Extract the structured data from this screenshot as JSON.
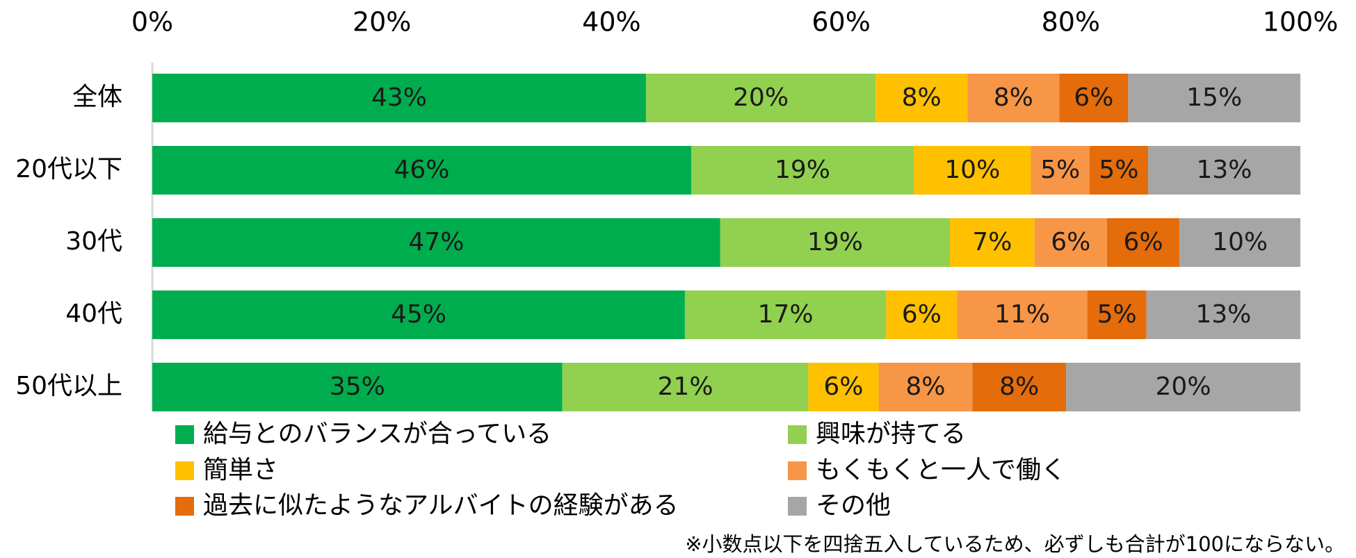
{
  "chart_data": {
    "type": "bar",
    "orientation": "horizontal",
    "stacked": true,
    "xlim": [
      0,
      100
    ],
    "x_ticks": [
      "0%",
      "20%",
      "40%",
      "60%",
      "80%",
      "100%"
    ],
    "categories": [
      "全体",
      "20代以下",
      "30代",
      "40代",
      "50代以上"
    ],
    "series": [
      {
        "name": "給与とのバランスが合っている",
        "color": "#00AD4E",
        "values": [
          43,
          46,
          47,
          45,
          35
        ],
        "labels": [
          "43%",
          "46%",
          "47%",
          "45%",
          "35%"
        ]
      },
      {
        "name": "興味が持てる",
        "color": "#92D050",
        "values": [
          20,
          19,
          19,
          17,
          21
        ],
        "labels": [
          "20%",
          "19%",
          "19%",
          "17%",
          "21%"
        ]
      },
      {
        "name": "簡単さ",
        "color": "#FFC000",
        "values": [
          8,
          10,
          7,
          6,
          6
        ],
        "labels": [
          "8%",
          "10%",
          "7%",
          "6%",
          "6%"
        ]
      },
      {
        "name": "もくもくと一人で働く",
        "color": "#F79646",
        "values": [
          8,
          5,
          6,
          11,
          8
        ],
        "labels": [
          "8%",
          "5%",
          "6%",
          "11%",
          "8%"
        ]
      },
      {
        "name": "過去に似たようなアルバイトの経験がある",
        "color": "#E46C0A",
        "values": [
          6,
          5,
          6,
          5,
          8
        ],
        "labels": [
          "6%",
          "5%",
          "6%",
          "5%",
          "8%"
        ]
      },
      {
        "name": "その他",
        "color": "#A6A6A6",
        "values": [
          15,
          13,
          10,
          13,
          20
        ],
        "labels": [
          "15%",
          "13%",
          "10%",
          "13%",
          "20%"
        ]
      }
    ],
    "legend_position": "bottom",
    "grid": false
  },
  "footnote": "※小数点以下を四捨五入しているため、必ずしも合計が100にならない。"
}
